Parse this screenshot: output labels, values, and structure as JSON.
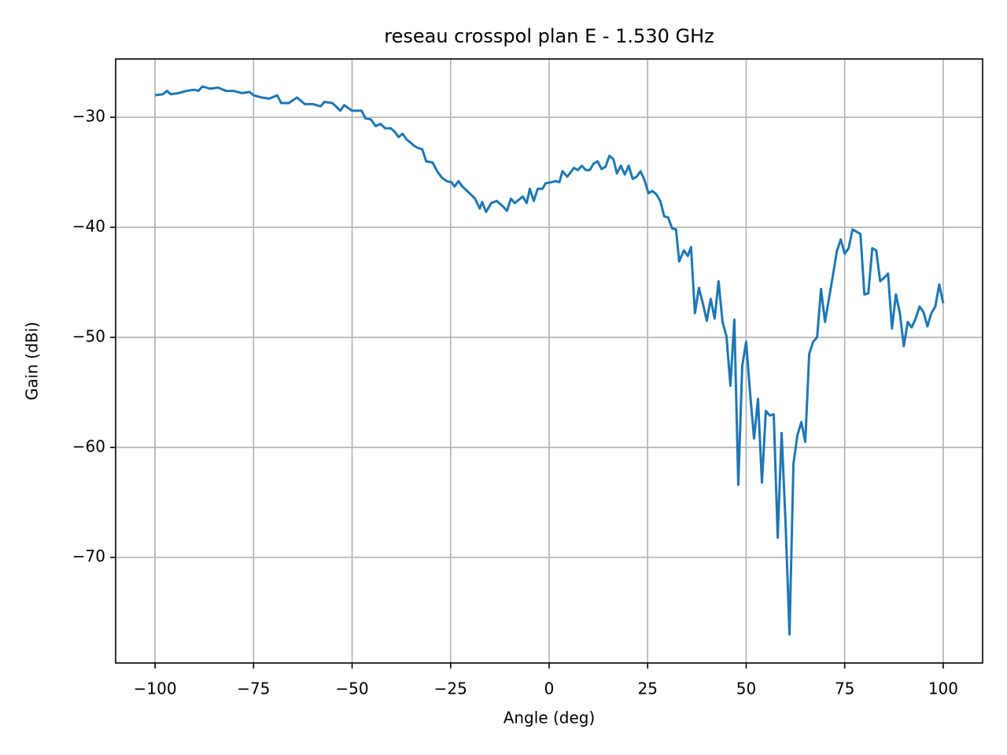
{
  "chart_data": {
    "type": "line",
    "title": "reseau crosspol plan E - 1.530 GHz",
    "x_label": "Angle (deg)",
    "y_label": "Gain (dBi)",
    "xlim": [
      -110,
      110
    ],
    "ylim": [
      -79.6,
      -24.7
    ],
    "xticks": [
      {
        "value": -100,
        "label": "−100"
      },
      {
        "value": -75,
        "label": "−75"
      },
      {
        "value": -50,
        "label": "−50"
      },
      {
        "value": -25,
        "label": "−25"
      },
      0,
      25,
      50,
      75,
      100
    ],
    "yticks": [
      {
        "value": -70,
        "label": "−70"
      },
      {
        "value": -60,
        "label": "−60"
      },
      {
        "value": -50,
        "label": "−50"
      },
      {
        "value": -40,
        "label": "−40"
      },
      {
        "value": -30,
        "label": "−30"
      }
    ],
    "grid": true,
    "series": [
      {
        "color": "#1f77b4",
        "x": [
          -100,
          -98,
          -97,
          -96,
          -94,
          -92,
          -90,
          -89,
          -88,
          -86,
          -84,
          -82,
          -80,
          -78,
          -76,
          -75,
          -73,
          -71,
          -69,
          -68,
          -66,
          -64,
          -62,
          -60,
          -58,
          -57,
          -55,
          -53,
          -52,
          -50,
          -47.6,
          -46.6,
          -45.2,
          -44,
          -42.8,
          -41.6,
          -40.2,
          -39.2,
          -38.2,
          -37.2,
          -36.2,
          -35.2,
          -34.2,
          -33.2,
          -32.2,
          -31.2,
          -29.6,
          -28.4,
          -27.2,
          -26,
          -24.8,
          -24,
          -23,
          -22,
          -20.8,
          -19.6,
          -18.8,
          -17.6,
          -17,
          -16,
          -14.7,
          -13.3,
          -11.7,
          -10.7,
          -9.7,
          -8.7,
          -6.7,
          -5.7,
          -4.9,
          -3.9,
          -2.9,
          -1.7,
          -0.9,
          0.6,
          1.6,
          2.6,
          3.4,
          4.6,
          6.3,
          7.3,
          8.3,
          9.3,
          10.3,
          11.3,
          12.3,
          13.3,
          14.3,
          15.3,
          16.3,
          17.2,
          18.2,
          19.2,
          20.2,
          21.2,
          22.2,
          23.2,
          24.2,
          25.2,
          26.2,
          27.2,
          28.2,
          29.2,
          30.2,
          31.2,
          32.2,
          33,
          34.2,
          35.2,
          36,
          37,
          38,
          39,
          40,
          41,
          42,
          43,
          44,
          45,
          46,
          47,
          48,
          49,
          50,
          51,
          52,
          53,
          54,
          55,
          56,
          57,
          58,
          59,
          60,
          61,
          62,
          63,
          64,
          65,
          66,
          67,
          68,
          69,
          70,
          71,
          72,
          73,
          74,
          75,
          76,
          77,
          78,
          79,
          80,
          81,
          82,
          83,
          84,
          85,
          86,
          87,
          88,
          89,
          90,
          91,
          92,
          93,
          94,
          95,
          96,
          97,
          98,
          99,
          100
        ],
        "values": [
          -28.0,
          -27.9,
          -27.6,
          -27.9,
          -27.8,
          -27.6,
          -27.5,
          -27.6,
          -27.2,
          -27.4,
          -27.3,
          -27.6,
          -27.6,
          -27.8,
          -27.7,
          -28.0,
          -28.2,
          -28.3,
          -28.0,
          -28.7,
          -28.7,
          -28.2,
          -28.8,
          -28.8,
          -29.0,
          -28.6,
          -28.7,
          -29.4,
          -28.9,
          -29.4,
          -29.4,
          -30.1,
          -30.2,
          -30.8,
          -30.6,
          -31.0,
          -31.0,
          -31.3,
          -31.8,
          -31.5,
          -32.0,
          -32.3,
          -32.6,
          -32.8,
          -32.9,
          -34.0,
          -34.1,
          -34.9,
          -35.5,
          -35.8,
          -35.9,
          -36.3,
          -35.8,
          -36.3,
          -36.7,
          -37.1,
          -37.4,
          -38.3,
          -37.7,
          -38.6,
          -37.8,
          -37.6,
          -38.1,
          -38.5,
          -37.4,
          -37.8,
          -37.2,
          -37.8,
          -36.5,
          -37.6,
          -36.5,
          -36.5,
          -36.0,
          -35.9,
          -35.8,
          -35.9,
          -34.9,
          -35.4,
          -34.6,
          -34.8,
          -34.4,
          -34.8,
          -34.8,
          -34.2,
          -34.0,
          -34.7,
          -34.5,
          -33.5,
          -33.8,
          -35.1,
          -34.4,
          -35.2,
          -34.4,
          -35.6,
          -35.4,
          -34.9,
          -35.7,
          -36.9,
          -36.7,
          -37.0,
          -37.6,
          -39.0,
          -39.1,
          -40.1,
          -40.2,
          -43.1,
          -42.1,
          -42.6,
          -41.8,
          -47.8,
          -45.5,
          -46.9,
          -48.5,
          -46.5,
          -48.3,
          -44.9,
          -48.6,
          -49.9,
          -54.4,
          -48.4,
          -63.4,
          -52.6,
          -50.4,
          -55.1,
          -59.2,
          -55.6,
          -63.2,
          -56.7,
          -57.1,
          -57.0,
          -68.2,
          -58.7,
          -66.9,
          -77.0,
          -61.5,
          -58.9,
          -57.7,
          -59.5,
          -51.5,
          -50.4,
          -50.0,
          -45.6,
          -48.6,
          -46.5,
          -44.4,
          -42.2,
          -41.1,
          -42.4,
          -41.9,
          -40.2,
          -40.4,
          -40.6,
          -46.1,
          -46.0,
          -41.9,
          -42.1,
          -44.9,
          -44.6,
          -44.2,
          -49.2,
          -46.1,
          -47.8,
          -50.8,
          -48.6,
          -49.1,
          -48.3,
          -47.2,
          -47.7,
          -49.0,
          -47.8,
          -47.2,
          -45.2,
          -46.9
        ]
      }
    ]
  }
}
